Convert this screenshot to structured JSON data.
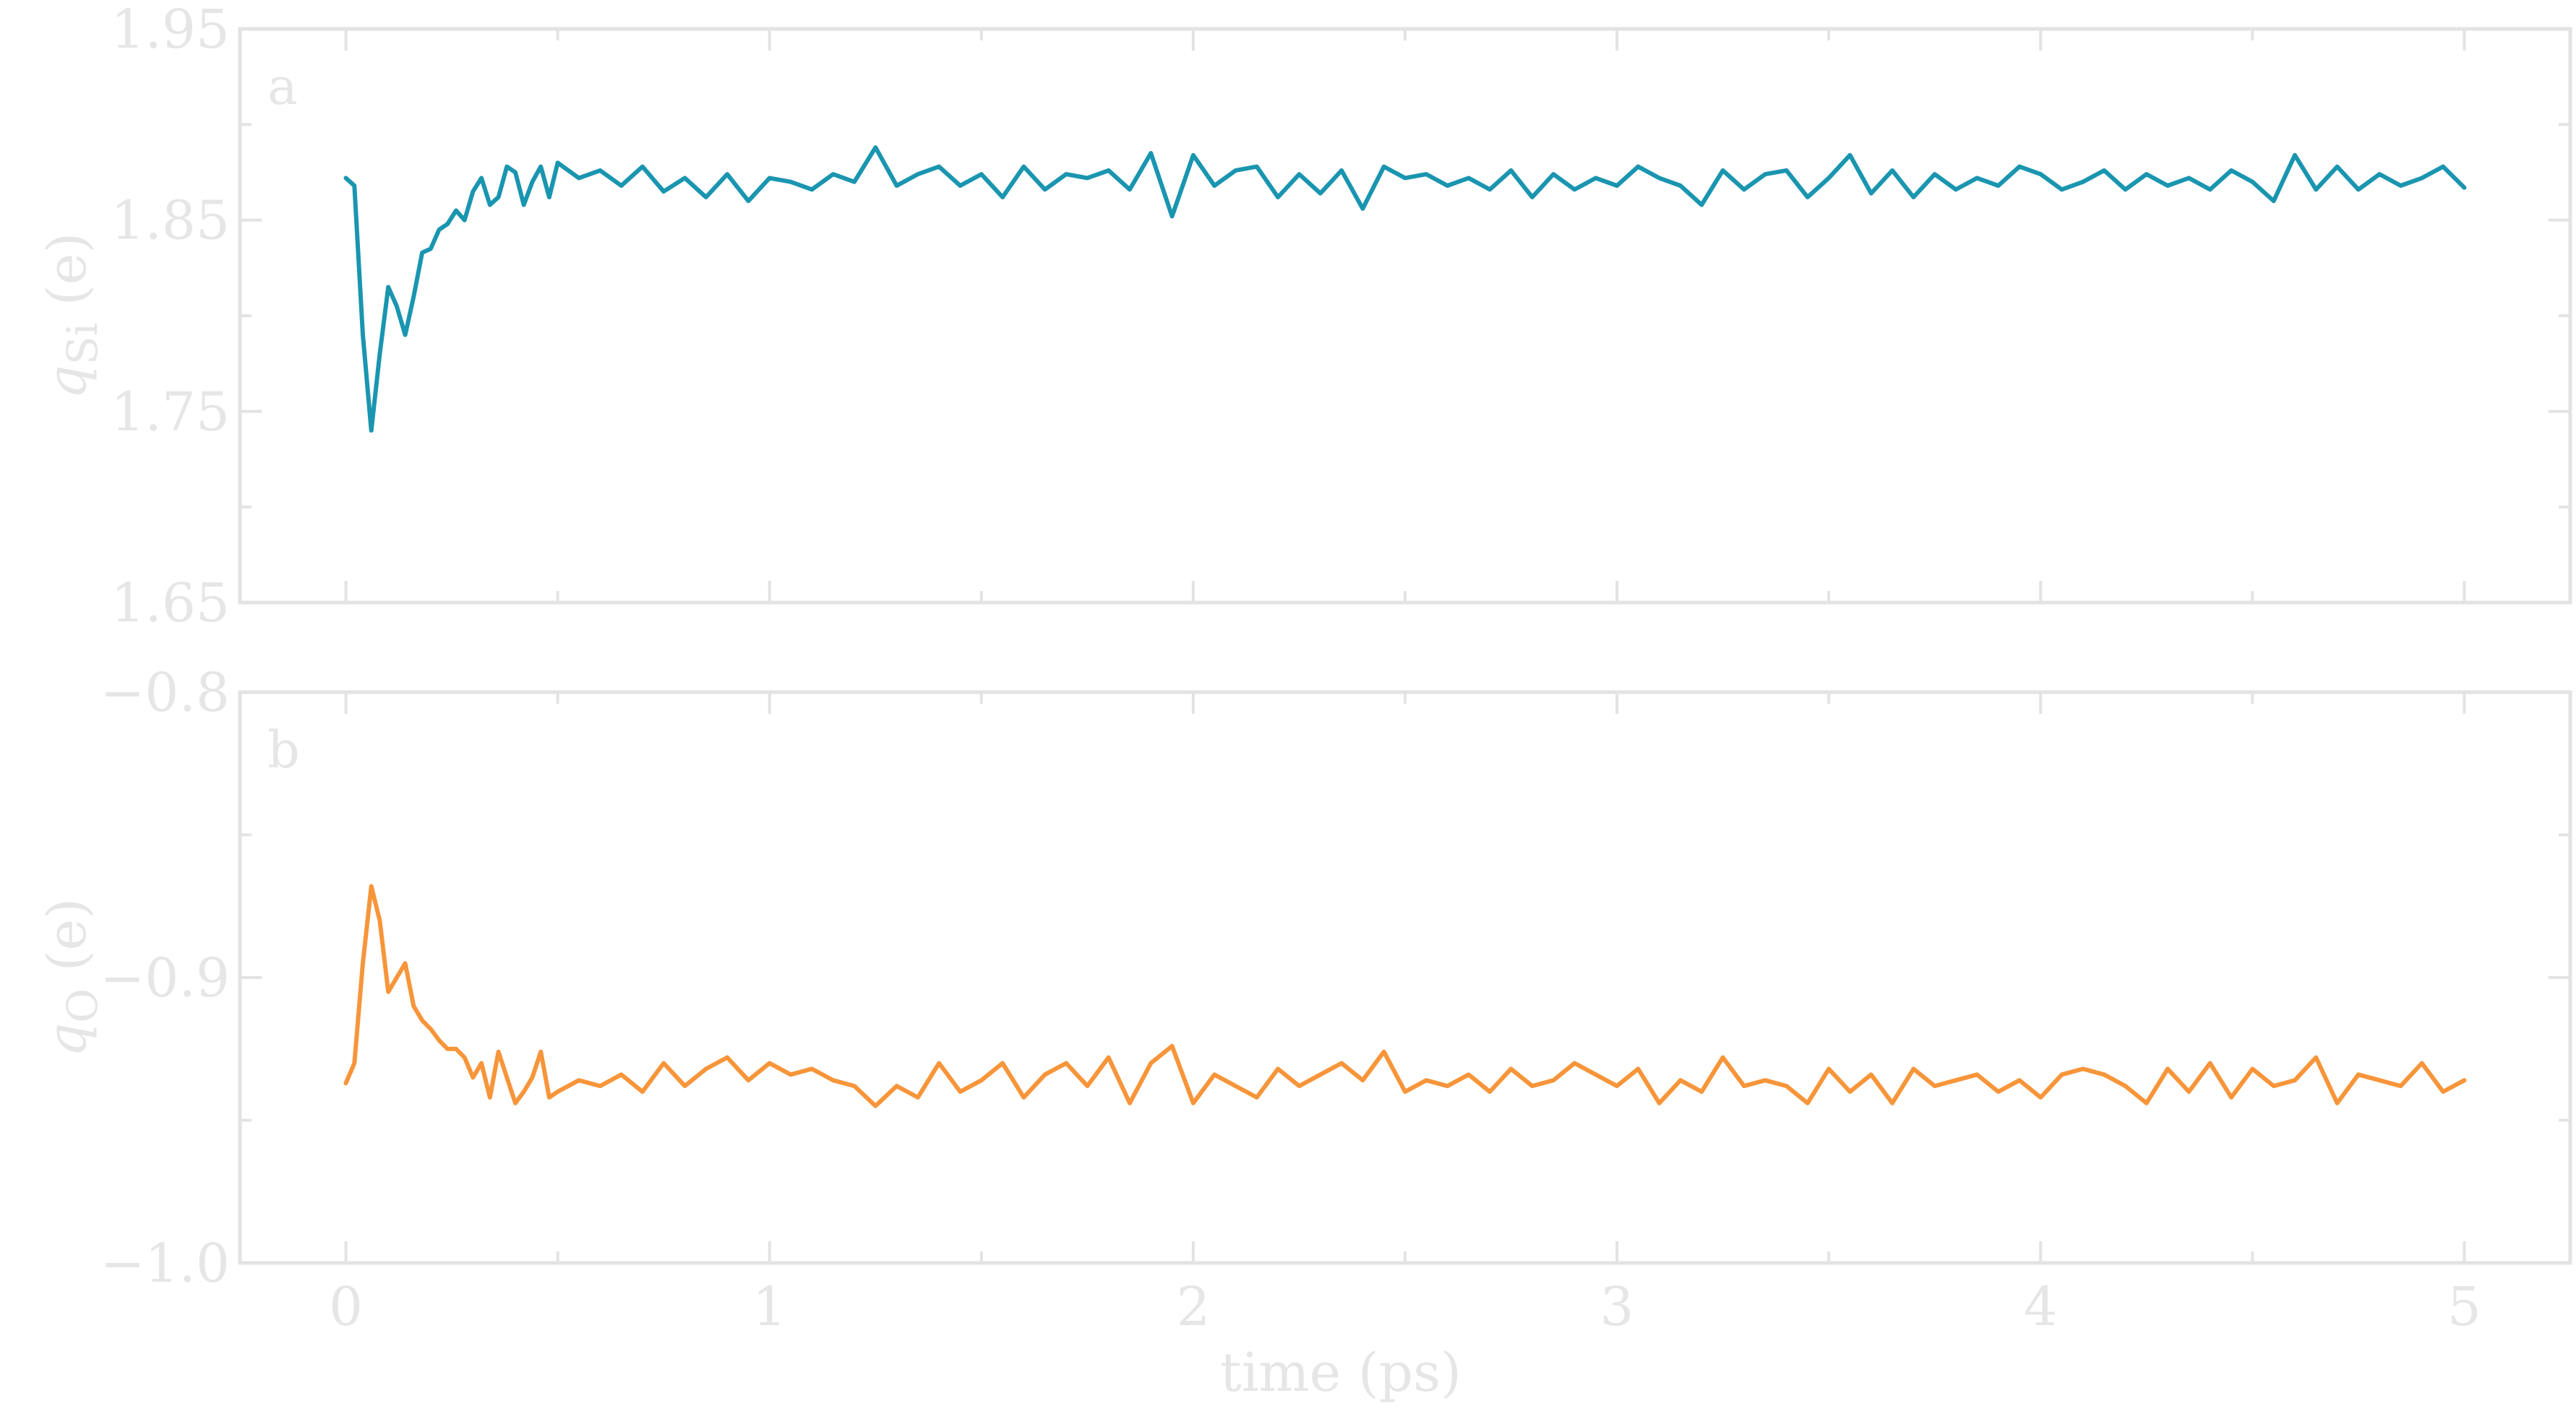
{
  "chart_data": [
    {
      "type": "line",
      "panel_label": "a",
      "ylabel": "q_Si (e)",
      "ylabel_symbol": "q",
      "ylabel_subscript": "Si",
      "ylabel_unit": "(e)",
      "xlim": [
        -0.25,
        5.25
      ],
      "ylim": [
        1.65,
        1.95
      ],
      "yticks": [
        "1.95",
        "1.85",
        "1.75",
        "1.65"
      ],
      "ytick_values": [
        1.95,
        1.85,
        1.75,
        1.65
      ],
      "color": "#1a95b0",
      "series": [
        {
          "x": [
            0,
            0.02,
            0.04,
            0.06,
            0.08,
            0.1,
            0.12,
            0.14,
            0.16,
            0.18,
            0.2,
            0.22,
            0.24,
            0.26,
            0.28,
            0.3,
            0.32,
            0.34,
            0.36,
            0.38,
            0.4,
            0.42,
            0.44,
            0.46,
            0.48,
            0.5,
            0.55,
            0.6,
            0.65,
            0.7,
            0.75,
            0.8,
            0.85,
            0.9,
            0.95,
            1.0,
            1.05,
            1.1,
            1.15,
            1.2,
            1.25,
            1.3,
            1.35,
            1.4,
            1.45,
            1.5,
            1.55,
            1.6,
            1.65,
            1.7,
            1.75,
            1.8,
            1.85,
            1.9,
            1.95,
            2.0,
            2.05,
            2.1,
            2.15,
            2.2,
            2.25,
            2.3,
            2.35,
            2.4,
            2.45,
            2.5,
            2.55,
            2.6,
            2.65,
            2.7,
            2.75,
            2.8,
            2.85,
            2.9,
            2.95,
            3.0,
            3.05,
            3.1,
            3.15,
            3.2,
            3.25,
            3.3,
            3.35,
            3.4,
            3.45,
            3.5,
            3.55,
            3.6,
            3.65,
            3.7,
            3.75,
            3.8,
            3.85,
            3.9,
            3.95,
            4.0,
            4.05,
            4.1,
            4.15,
            4.2,
            4.25,
            4.3,
            4.35,
            4.4,
            4.45,
            4.5,
            4.55,
            4.6,
            4.65,
            4.7,
            4.75,
            4.8,
            4.85,
            4.9,
            4.95,
            5.0
          ],
          "y": [
            1.872,
            1.868,
            1.79,
            1.74,
            1.78,
            1.815,
            1.805,
            1.79,
            1.81,
            1.833,
            1.835,
            1.845,
            1.848,
            1.855,
            1.85,
            1.865,
            1.872,
            1.858,
            1.862,
            1.878,
            1.875,
            1.858,
            1.87,
            1.878,
            1.862,
            1.88,
            1.872,
            1.876,
            1.868,
            1.878,
            1.865,
            1.872,
            1.862,
            1.874,
            1.86,
            1.872,
            1.87,
            1.866,
            1.874,
            1.87,
            1.888,
            1.868,
            1.874,
            1.878,
            1.868,
            1.874,
            1.862,
            1.878,
            1.866,
            1.874,
            1.872,
            1.876,
            1.866,
            1.885,
            1.852,
            1.884,
            1.868,
            1.876,
            1.878,
            1.862,
            1.874,
            1.864,
            1.876,
            1.856,
            1.878,
            1.872,
            1.874,
            1.868,
            1.872,
            1.866,
            1.876,
            1.862,
            1.874,
            1.866,
            1.872,
            1.868,
            1.878,
            1.872,
            1.868,
            1.858,
            1.876,
            1.866,
            1.874,
            1.876,
            1.862,
            1.872,
            1.884,
            1.864,
            1.876,
            1.862,
            1.874,
            1.866,
            1.872,
            1.868,
            1.878,
            1.874,
            1.866,
            1.87,
            1.876,
            1.866,
            1.874,
            1.868,
            1.872,
            1.866,
            1.876,
            1.87,
            1.86,
            1.884,
            1.866,
            1.878,
            1.866,
            1.874,
            1.868,
            1.872,
            1.878,
            1.867
          ]
        }
      ]
    },
    {
      "type": "line",
      "panel_label": "b",
      "ylabel": "q_O (e)",
      "ylabel_symbol": "q",
      "ylabel_subscript": "O",
      "ylabel_unit": "(e)",
      "xlabel": "time (ps)",
      "xlim": [
        -0.25,
        5.25
      ],
      "xticks": [
        "0",
        "1",
        "2",
        "3",
        "4",
        "5"
      ],
      "xtick_values": [
        0,
        1,
        2,
        3,
        4,
        5
      ],
      "ylim": [
        -1.0,
        -0.8
      ],
      "yticks": [
        "−0.8",
        "−0.9",
        "−1.0"
      ],
      "ytick_values": [
        -0.8,
        -0.9,
        -1.0
      ],
      "color": "#f7953a",
      "series": [
        {
          "x": [
            0,
            0.02,
            0.04,
            0.06,
            0.08,
            0.1,
            0.12,
            0.14,
            0.16,
            0.18,
            0.2,
            0.22,
            0.24,
            0.26,
            0.28,
            0.3,
            0.32,
            0.34,
            0.36,
            0.38,
            0.4,
            0.42,
            0.44,
            0.46,
            0.48,
            0.5,
            0.55,
            0.6,
            0.65,
            0.7,
            0.75,
            0.8,
            0.85,
            0.9,
            0.95,
            1.0,
            1.05,
            1.1,
            1.15,
            1.2,
            1.25,
            1.3,
            1.35,
            1.4,
            1.45,
            1.5,
            1.55,
            1.6,
            1.65,
            1.7,
            1.75,
            1.8,
            1.85,
            1.9,
            1.95,
            2.0,
            2.05,
            2.1,
            2.15,
            2.2,
            2.25,
            2.3,
            2.35,
            2.4,
            2.45,
            2.5,
            2.55,
            2.6,
            2.65,
            2.7,
            2.75,
            2.8,
            2.85,
            2.9,
            2.95,
            3.0,
            3.05,
            3.1,
            3.15,
            3.2,
            3.25,
            3.3,
            3.35,
            3.4,
            3.45,
            3.5,
            3.55,
            3.6,
            3.65,
            3.7,
            3.75,
            3.8,
            3.85,
            3.9,
            3.95,
            4.0,
            4.05,
            4.1,
            4.15,
            4.2,
            4.25,
            4.3,
            4.35,
            4.4,
            4.45,
            4.5,
            4.55,
            4.6,
            4.65,
            4.7,
            4.75,
            4.8,
            4.85,
            4.9,
            4.95,
            5.0
          ],
          "y": [
            -0.937,
            -0.93,
            -0.895,
            -0.868,
            -0.88,
            -0.905,
            -0.9,
            -0.895,
            -0.91,
            -0.915,
            -0.918,
            -0.922,
            -0.925,
            -0.925,
            -0.928,
            -0.935,
            -0.93,
            -0.942,
            -0.926,
            -0.935,
            -0.944,
            -0.94,
            -0.935,
            -0.926,
            -0.942,
            -0.94,
            -0.936,
            -0.938,
            -0.934,
            -0.94,
            -0.93,
            -0.938,
            -0.932,
            -0.928,
            -0.936,
            -0.93,
            -0.934,
            -0.932,
            -0.936,
            -0.938,
            -0.945,
            -0.938,
            -0.942,
            -0.93,
            -0.94,
            -0.936,
            -0.93,
            -0.942,
            -0.934,
            -0.93,
            -0.938,
            -0.928,
            -0.944,
            -0.93,
            -0.924,
            -0.944,
            -0.934,
            -0.938,
            -0.942,
            -0.932,
            -0.938,
            -0.934,
            -0.93,
            -0.936,
            -0.926,
            -0.94,
            -0.936,
            -0.938,
            -0.934,
            -0.94,
            -0.932,
            -0.938,
            -0.936,
            -0.93,
            -0.934,
            -0.938,
            -0.932,
            -0.944,
            -0.936,
            -0.94,
            -0.928,
            -0.938,
            -0.936,
            -0.938,
            -0.944,
            -0.932,
            -0.94,
            -0.934,
            -0.944,
            -0.932,
            -0.938,
            -0.936,
            -0.934,
            -0.94,
            -0.936,
            -0.942,
            -0.934,
            -0.932,
            -0.934,
            -0.938,
            -0.944,
            -0.932,
            -0.94,
            -0.93,
            -0.942,
            -0.932,
            -0.938,
            -0.936,
            -0.928,
            -0.944,
            -0.934,
            -0.936,
            -0.938,
            -0.93,
            -0.94,
            -0.936
          ]
        }
      ]
    }
  ]
}
